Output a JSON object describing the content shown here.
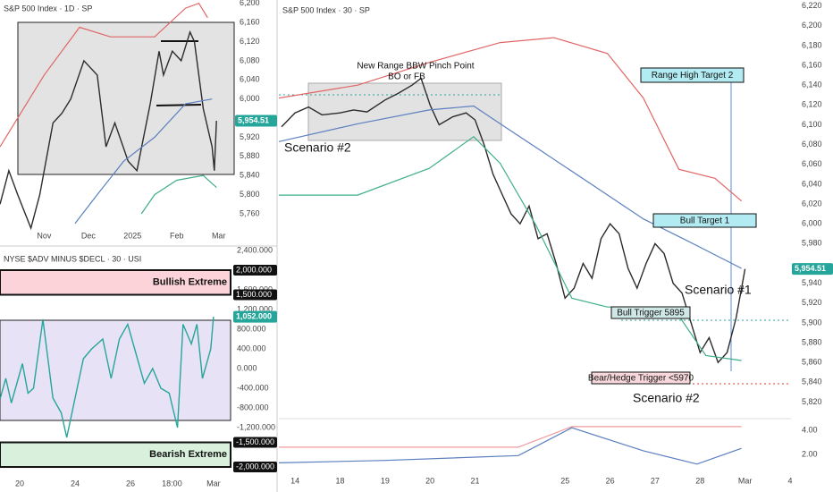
{
  "chart_data": [
    {
      "type": "line",
      "title": "S&P 500 Index · 1D · SP",
      "xlim": [
        0,
        5.3
      ],
      "ylim": [
        5730,
        6207
      ],
      "xticks": [
        {
          "value": 1,
          "label": "Nov"
        },
        {
          "value": 2,
          "label": "Dec"
        },
        {
          "value": 3,
          "label": "2025"
        },
        {
          "value": 4,
          "label": "Feb"
        },
        {
          "value": 4.95,
          "label": "Mar"
        }
      ],
      "yticks": [
        {
          "value": 6200,
          "label": "6,200"
        },
        {
          "value": 6160,
          "label": "6,160"
        },
        {
          "value": 6120,
          "label": "6,120"
        },
        {
          "value": 6080,
          "label": "6,080"
        },
        {
          "value": 6040,
          "label": "6,040"
        },
        {
          "value": 6000,
          "label": "6,000"
        },
        {
          "value": 5920,
          "label": "5,920"
        },
        {
          "value": 5880,
          "label": "5,880"
        },
        {
          "value": 5840,
          "label": "5,840"
        },
        {
          "value": 5800,
          "label": "5,800"
        },
        {
          "value": 5760,
          "label": "5,760"
        }
      ],
      "price_tag": {
        "value": 5954.51,
        "label": "5,954.51",
        "color": "#26a69a"
      },
      "series": [
        {
          "color": "#2b2b2b",
          "x": [
            0,
            0.2,
            0.4,
            0.7,
            0.9,
            1.2,
            1.4,
            1.6,
            1.9,
            2.2,
            2.4,
            2.6,
            2.9,
            3.1,
            3.4,
            3.6,
            3.7,
            3.9,
            4.1,
            4.3,
            4.4,
            4.6,
            4.8,
            4.85,
            4.9
          ],
          "values": [
            5780,
            5850,
            5800,
            5730,
            5800,
            5950,
            5970,
            6000,
            6080,
            6050,
            5900,
            5950,
            5870,
            5850,
            5990,
            6100,
            6050,
            6100,
            6080,
            6140,
            6120,
            5980,
            5900,
            5850,
            5954.51
          ]
        },
        {
          "color": "#e06666",
          "x": [
            0,
            1,
            1.8,
            2.5,
            3.5,
            4.2,
            4.5,
            4.7
          ],
          "values": [
            5900,
            6050,
            6150,
            6130,
            6130,
            6190,
            6200,
            6170
          ]
        },
        {
          "color": "#5b7fbf",
          "x": [
            1.7,
            2.2,
            2.8,
            3.5,
            4.2,
            4.8
          ],
          "values": [
            5740,
            5800,
            5870,
            5920,
            5990,
            6000
          ]
        },
        {
          "color": "#3fae8a",
          "x": [
            3.2,
            3.5,
            4,
            4.6,
            4.9
          ],
          "values": [
            5760,
            5800,
            5830,
            5840,
            5815
          ]
        }
      ]
    },
    {
      "type": "line",
      "title": "NYSE $ADV MINUS $DECL · 30 · USI",
      "xlim": [
        -0.71,
        7.68
      ],
      "ylim": [
        -2145,
        2400
      ],
      "xticks": [
        {
          "value": 0,
          "label": "20"
        },
        {
          "value": 2,
          "label": "24"
        },
        {
          "value": 4,
          "label": "26"
        },
        {
          "value": 5.5,
          "label": "18:00"
        },
        {
          "value": 7,
          "label": "Mar"
        }
      ],
      "yticks": [
        {
          "value": 2400,
          "label": "2,400.000"
        },
        {
          "value": 1600,
          "label": "1,600.000"
        },
        {
          "value": 1200,
          "label": "1,200.000"
        },
        {
          "value": 800,
          "label": "800.000"
        },
        {
          "value": 400,
          "label": "400.000"
        },
        {
          "value": 0,
          "label": "0.000"
        },
        {
          "value": -400,
          "label": "-400.000"
        },
        {
          "value": -800,
          "label": "-800.000"
        },
        {
          "value": -1200,
          "label": "-1,200.000"
        }
      ],
      "level_tags": [
        {
          "value": 2000,
          "label": "2,000.000"
        },
        {
          "value": 1500,
          "label": "1,500.000"
        },
        {
          "value": -1500,
          "label": "-1,500.000"
        },
        {
          "value": -2000,
          "label": "-2,000.000"
        }
      ],
      "zones": [
        {
          "label": "Bullish Extreme",
          "from": 1500,
          "to": 2000,
          "color": "#fbd3d8"
        },
        {
          "label": "Bearish Extreme",
          "from": -2000,
          "to": -1500,
          "color": "#d9f0dc"
        }
      ],
      "price_tag": {
        "value": 1052,
        "label": "1,052.000",
        "color": "#26a69a"
      },
      "series": [
        {
          "color": "#26a69a",
          "x": [
            -0.7,
            -0.5,
            -0.3,
            -0.1,
            0.1,
            0.3,
            0.5,
            0.84,
            1.2,
            1.5,
            1.7,
            2.0,
            2.3,
            2.6,
            3.0,
            3.3,
            3.6,
            3.9,
            4.2,
            4.5,
            4.8,
            5.1,
            5.4,
            5.7,
            5.9,
            6.2,
            6.4,
            6.6,
            6.9,
            7.0
          ],
          "values": [
            -600,
            -200,
            -700,
            -300,
            100,
            -500,
            -400,
            1000,
            -600,
            -900,
            -1400,
            -600,
            200,
            400,
            600,
            -200,
            600,
            900,
            300,
            -300,
            0,
            -400,
            -500,
            -1200,
            900,
            500,
            900,
            -200,
            400,
            1052
          ]
        }
      ]
    },
    {
      "type": "line",
      "title": "S&P 500 Index · 30 · SP",
      "xlim": [
        -0.36,
        11.02
      ],
      "ylim": [
        5806,
        6226
      ],
      "xticks": [
        {
          "value": 0,
          "label": "14"
        },
        {
          "value": 1,
          "label": "18"
        },
        {
          "value": 2,
          "label": "19"
        },
        {
          "value": 3,
          "label": "20"
        },
        {
          "value": 4,
          "label": "21"
        },
        {
          "value": 6,
          "label": "25"
        },
        {
          "value": 7,
          "label": "26"
        },
        {
          "value": 8,
          "label": "27"
        },
        {
          "value": 9,
          "label": "28"
        },
        {
          "value": 10,
          "label": "Mar"
        },
        {
          "value": 11,
          "label": "4"
        }
      ],
      "yticks": [
        {
          "value": 6220,
          "label": "6,220"
        },
        {
          "value": 6200,
          "label": "6,200"
        },
        {
          "value": 6180,
          "label": "6,180"
        },
        {
          "value": 6160,
          "label": "6,160"
        },
        {
          "value": 6140,
          "label": "6,140"
        },
        {
          "value": 6120,
          "label": "6,120"
        },
        {
          "value": 6100,
          "label": "6,100"
        },
        {
          "value": 6080,
          "label": "6,080"
        },
        {
          "value": 6060,
          "label": "6,060"
        },
        {
          "value": 6040,
          "label": "6,040"
        },
        {
          "value": 6020,
          "label": "6,020"
        },
        {
          "value": 6000,
          "label": "6,000"
        },
        {
          "value": 5980,
          "label": "5,980"
        },
        {
          "value": 5940,
          "label": "5,940"
        },
        {
          "value": 5920,
          "label": "5,920"
        },
        {
          "value": 5900,
          "label": "5,900"
        },
        {
          "value": 5880,
          "label": "5,880"
        },
        {
          "value": 5860,
          "label": "5,860"
        },
        {
          "value": 5840,
          "label": "5,840"
        },
        {
          "value": 5820,
          "label": "5,820"
        }
      ],
      "price_tag": {
        "value": 5954.51,
        "label": "5,954.51",
        "color": "#26a69a"
      },
      "annotations": [
        "New Range BBW Pinch Point",
        "BO or FB",
        "Scenario #2",
        "Range High Target 2",
        "Bull Target 1",
        "Scenario #1",
        "Bull Trigger 5895",
        "Bear/Hedge Trigger <5970",
        "Scenario #2"
      ],
      "series": [
        {
          "color": "#2b2b2b",
          "x": [
            -0.3,
            0,
            0.3,
            0.6,
            1,
            1.3,
            1.6,
            2,
            2.3,
            2.6,
            2.8,
            3.0,
            3.2,
            3.5,
            3.8,
            4.0,
            4.2,
            4.4,
            4.6,
            4.8,
            5.0,
            5.2,
            5.4,
            5.6,
            5.8,
            6.0,
            6.2,
            6.4,
            6.6,
            6.8,
            7.0,
            7.2,
            7.4,
            7.6,
            7.8,
            8.0,
            8.2,
            8.4,
            8.6,
            8.8,
            9.0,
            9.2,
            9.4,
            9.6,
            9.8,
            10.0
          ],
          "values": [
            6098,
            6112,
            6118,
            6110,
            6112,
            6115,
            6113,
            6125,
            6132,
            6140,
            6147,
            6120,
            6100,
            6108,
            6112,
            6105,
            6080,
            6050,
            6030,
            6010,
            6000,
            6018,
            5985,
            5990,
            5960,
            5925,
            5935,
            5960,
            5945,
            5985,
            6000,
            5990,
            5955,
            5935,
            5960,
            5980,
            5970,
            5940,
            5930,
            5900,
            5870,
            5885,
            5860,
            5870,
            5905,
            5954.51
          ]
        },
        {
          "color": "#e06666",
          "x": [
            -0.36,
            1.39,
            2.98,
            4.56,
            5.75,
            6.94,
            7.74,
            8.53,
            9.33,
            9.92
          ],
          "values": [
            6127,
            6140,
            6163,
            6183,
            6188,
            6172,
            6127,
            6055,
            6046,
            6023
          ]
        },
        {
          "color": "#5b7fbf",
          "x": [
            -0.36,
            1.39,
            2.98,
            3.97,
            4.56,
            5.36,
            6.55,
            7.74,
            8.93,
            9.92
          ],
          "values": [
            6083,
            6101,
            6115,
            6119,
            6101,
            6077,
            6041,
            6005,
            5978,
            5955
          ]
        },
        {
          "color": "#3fae8a",
          "x": [
            -0.36,
            1.39,
            2.98,
            3.97,
            4.56,
            5.36,
            6.15,
            6.94,
            7.74,
            8.53,
            9.13,
            9.92
          ],
          "values": [
            6029,
            6029,
            6056,
            6088,
            6061,
            5998,
            5925,
            5916,
            5916,
            5907,
            5867,
            5862
          ]
        }
      ]
    },
    {
      "type": "line",
      "xlim": [
        -0.36,
        11.02
      ],
      "ylim": [
        0.37,
        4.81
      ],
      "yticks": [
        {
          "value": 4,
          "label": "4.00"
        },
        {
          "value": 2,
          "label": "2.00"
        }
      ],
      "series": [
        {
          "color": "#ef9a9a",
          "x": [
            -0.36,
            2,
            4.96,
            6.15,
            8,
            9.92
          ],
          "values": [
            2.6,
            2.6,
            2.6,
            4.3,
            4.3,
            4.3
          ]
        },
        {
          "color": "#5b7fbf",
          "x": [
            -0.36,
            2,
            4.96,
            6.15,
            7.74,
            8.93,
            9.92
          ],
          "values": [
            1.3,
            1.5,
            1.9,
            4.2,
            2.3,
            1.2,
            2.5
          ]
        }
      ]
    }
  ]
}
